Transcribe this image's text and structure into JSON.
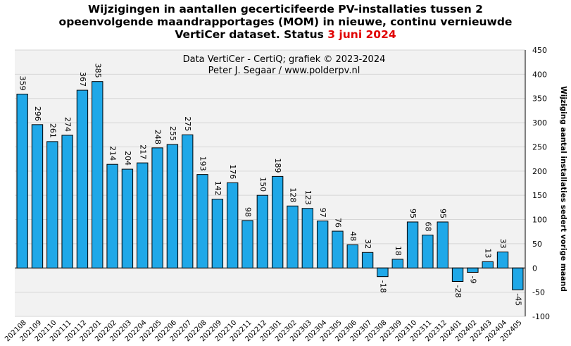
{
  "title": {
    "line1": "Wijzigingen in aantallen gecerticifeerde PV-installaties tussen 2",
    "line2": "opeenvolgende maandrapportages (MOM) in nieuwe, continu vernieuwde",
    "line3_prefix": "VertiCer dataset. Status ",
    "line3_date": "3 juni 2024"
  },
  "credits": {
    "line1": "Data VertiCer - CertiQ; grafiek © 2023-2024",
    "line2": "Peter J. Segaar / www.polderpv.nl"
  },
  "colors": {
    "bar": "#1fa8e8",
    "bar_stroke": "#000000",
    "title_date": "#e00000",
    "plot_bg": "#f2f2f2",
    "grid": "#d6d6d6"
  },
  "chart_data": {
    "type": "bar",
    "title": "Wijzigingen in aantallen gecerticifeerde PV-installaties tussen 2 opeenvolgende maandrapportages (MOM) in nieuwe, continu vernieuwde VertiCer dataset. Status 3 juni 2024",
    "xlabel": "",
    "ylabel": "Wijziging aantal installaties sedert vorige maand",
    "ylim": [
      -100,
      450
    ],
    "yticks": [
      -100,
      -50,
      0,
      50,
      100,
      150,
      200,
      250,
      300,
      350,
      400,
      450
    ],
    "y_axis_side": "right",
    "grid": true,
    "categories": [
      "202108",
      "202109",
      "202110",
      "202111",
      "202112",
      "202201",
      "202202",
      "202203",
      "202204",
      "202205",
      "202206",
      "202207",
      "202208",
      "202209",
      "202210",
      "202211",
      "202212",
      "202301",
      "202302",
      "202303",
      "202304",
      "202305",
      "202306",
      "202307",
      "202308",
      "202309",
      "202310",
      "202311",
      "202312",
      "202401",
      "202402",
      "202403",
      "202404",
      "202405"
    ],
    "values": [
      359,
      296,
      261,
      274,
      367,
      385,
      214,
      204,
      217,
      248,
      255,
      275,
      193,
      142,
      176,
      98,
      150,
      189,
      128,
      123,
      97,
      76,
      48,
      32,
      -18,
      18,
      95,
      68,
      95,
      -28,
      -9,
      13,
      33,
      -45
    ]
  }
}
